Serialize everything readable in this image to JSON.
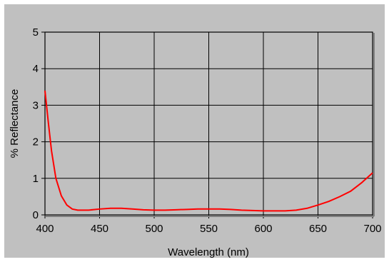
{
  "chart_data": {
    "type": "line",
    "title": "",
    "xlabel": "Wavelength (nm)",
    "ylabel": "% Reflectance",
    "xlim": [
      400,
      700
    ],
    "ylim": [
      0,
      5
    ],
    "xticks": [
      400,
      450,
      500,
      550,
      600,
      650,
      700
    ],
    "yticks": [
      0,
      1,
      2,
      3,
      4,
      5
    ],
    "grid": true,
    "legend": "none",
    "series": [
      {
        "x": [
          400,
          403,
          406,
          410,
          415,
          420,
          425,
          430,
          440,
          450,
          460,
          470,
          480,
          490,
          500,
          510,
          520,
          530,
          540,
          550,
          560,
          570,
          580,
          590,
          600,
          610,
          620,
          630,
          640,
          650,
          660,
          670,
          680,
          690,
          700
        ],
        "y": [
          3.4,
          2.55,
          1.75,
          1.0,
          0.52,
          0.27,
          0.16,
          0.13,
          0.13,
          0.16,
          0.18,
          0.18,
          0.16,
          0.14,
          0.13,
          0.13,
          0.14,
          0.15,
          0.16,
          0.16,
          0.16,
          0.15,
          0.13,
          0.12,
          0.11,
          0.11,
          0.11,
          0.13,
          0.18,
          0.27,
          0.37,
          0.5,
          0.65,
          0.88,
          1.15
        ],
        "color": "#ff0000"
      }
    ]
  },
  "colors": {
    "background": "#c0c0c0",
    "plot_area": "#c0c0c0",
    "grid": "#000000",
    "line": "#ff0000"
  }
}
